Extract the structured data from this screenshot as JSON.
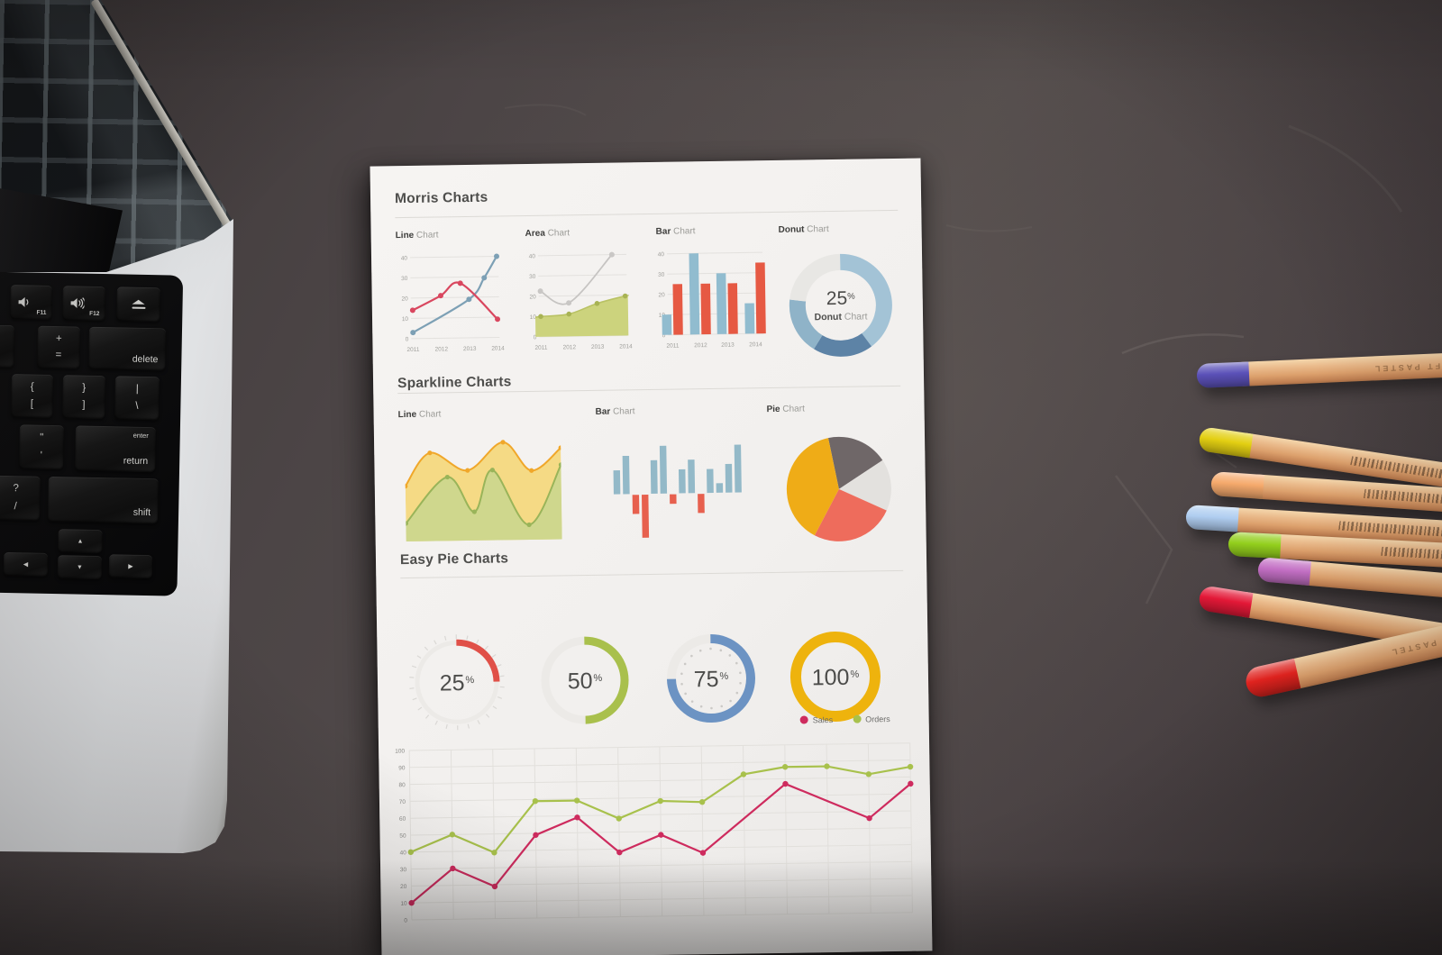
{
  "scene": {
    "description": "Top-down photo of a dark desk: silver laptop keyboard at left, white printed chart report in the center, colored pencils fanned at right",
    "desk_color": "#4b4344",
    "paper_color": "#f2f0ee"
  },
  "laptop": {
    "keys": {
      "f11": {
        "label": "F11",
        "icon": "volume-down-icon"
      },
      "f12": {
        "label": "F12",
        "icon": "volume-up-icon"
      },
      "eject": {
        "icon": "eject-icon"
      },
      "minus": {
        "top": "_",
        "bottom": "-"
      },
      "equals": {
        "top": "+",
        "bottom": "="
      },
      "delete": {
        "label": "delete"
      },
      "lbracket": {
        "top": "{",
        "bottom": "["
      },
      "rbracket": {
        "top": "}",
        "bottom": "]"
      },
      "backslash": {
        "top": "|",
        "bottom": "\\"
      },
      "quote": {
        "top": "\"",
        "bottom": "'"
      },
      "return": {
        "small": "enter",
        "label": "return"
      },
      "question": {
        "top": "?",
        "bottom": "/"
      },
      "shift": {
        "label": "shift"
      },
      "up": {
        "glyph": "▲"
      },
      "down": {
        "glyph": "▼"
      },
      "left": {
        "glyph": "◀"
      },
      "right": {
        "glyph": "▶"
      }
    }
  },
  "paper": {
    "morris": {
      "title": "Morris Charts",
      "panels": [
        {
          "bold": "Line",
          "rest": "Chart"
        },
        {
          "bold": "Area",
          "rest": "Chart"
        },
        {
          "bold": "Bar",
          "rest": "Chart"
        },
        {
          "bold": "Donut",
          "rest": "Chart"
        }
      ]
    },
    "sparkline": {
      "title": "Sparkline Charts",
      "panels": [
        {
          "bold": "Line",
          "rest": "Chart"
        },
        {
          "bold": "Bar",
          "rest": "Chart"
        },
        {
          "bold": "Pie",
          "rest": "Chart"
        }
      ]
    },
    "easy": {
      "title": "Easy Pie Charts"
    },
    "legend": {
      "sales": "Sales",
      "orders": "Orders"
    }
  },
  "chart_data": [
    {
      "id": "morris-line",
      "type": "line",
      "title": "Line Chart",
      "x_ticks": [
        "2011",
        "2012",
        "2013",
        "2014"
      ],
      "ylim": [
        0,
        40
      ],
      "yticks": [
        0,
        10,
        20,
        30,
        40
      ],
      "grid": true,
      "series": [
        {
          "name": "blue",
          "color": "#7da0b5",
          "points": [
            [
              2011,
              3
            ],
            [
              2013,
              19
            ],
            [
              2013.55,
              29.5
            ],
            [
              2014,
              40
            ]
          ]
        },
        {
          "name": "red",
          "color": "#d9475f",
          "points": [
            [
              2011,
              14
            ],
            [
              2012,
              21
            ],
            [
              2012.7,
              27
            ],
            [
              2014,
              9
            ]
          ]
        }
      ]
    },
    {
      "id": "morris-area",
      "type": "area",
      "title": "Area Chart",
      "x_ticks": [
        "2011",
        "2012",
        "2013",
        "2014"
      ],
      "ylim": [
        0,
        40
      ],
      "yticks": [
        0,
        10,
        20,
        30,
        40
      ],
      "grid": true,
      "series": [
        {
          "name": "olive",
          "color": "#b9c264",
          "fill": "#ccd37d",
          "points": [
            [
              2011,
              10
            ],
            [
              2012,
              11
            ],
            [
              2013,
              16
            ],
            [
              2014,
              19.5
            ]
          ]
        },
        {
          "name": "gray",
          "color": "#c6c4c2",
          "points": [
            [
              2011,
              22.5
            ],
            [
              2012,
              16.5
            ],
            [
              2013.55,
              40
            ]
          ]
        }
      ]
    },
    {
      "id": "morris-bar",
      "type": "bar",
      "title": "Bar Chart",
      "categories": [
        "2011",
        "2012",
        "2013",
        "2014"
      ],
      "ylim": [
        0,
        40
      ],
      "yticks": [
        0,
        10,
        20,
        30,
        40
      ],
      "grid": true,
      "series": [
        {
          "name": "blue",
          "color": "#91bccf",
          "values": [
            10,
            40,
            30,
            15
          ]
        },
        {
          "name": "red",
          "color": "#e65943",
          "values": [
            25,
            25,
            25,
            35
          ]
        }
      ]
    },
    {
      "id": "donut",
      "type": "donut",
      "title": "Donut Chart",
      "center_value": "25",
      "center_unit": "%",
      "center_label_bold": "Donut",
      "center_label_rest": "Chart",
      "segments": [
        {
          "name": "light-blue",
          "color": "#a3c3d6",
          "value": 40
        },
        {
          "name": "dark-blue",
          "color": "#5d83a6",
          "value": 19
        },
        {
          "name": "mid-blue",
          "color": "#8fb3c8",
          "value": 18
        },
        {
          "name": "gray",
          "color": "#e8e7e4",
          "value": 23
        }
      ]
    },
    {
      "id": "spark-line",
      "type": "area-sparkline",
      "title": "Line Chart",
      "series": [
        {
          "name": "yellow",
          "stroke": "#f0a72a",
          "fill": "#f4d87e",
          "points": [
            [
              0,
              52
            ],
            [
              16,
              83
            ],
            [
              40,
              66
            ],
            [
              63,
              92
            ],
            [
              81,
              65
            ],
            [
              100,
              86
            ]
          ]
        },
        {
          "name": "green",
          "stroke": "#99b459",
          "fill": "#ccd78d",
          "points": [
            [
              0,
              17
            ],
            [
              27,
              60
            ],
            [
              44,
              27
            ],
            [
              56,
              66
            ],
            [
              79,
              14
            ],
            [
              100,
              70
            ]
          ]
        }
      ]
    },
    {
      "id": "spark-bar",
      "type": "bar-sparkline",
      "title": "Bar Chart",
      "positive_color": "#93b9c8",
      "negative_color": "#e7604e",
      "values": [
        5,
        8,
        -4,
        -9,
        7,
        10,
        -2,
        5,
        7,
        -4,
        5,
        2,
        6,
        10
      ]
    },
    {
      "id": "spark-pie",
      "type": "pie",
      "title": "Pie Chart",
      "start_angle": -11,
      "slices": [
        {
          "name": "dark-gray",
          "color": "#6f6768",
          "value": 19
        },
        {
          "name": "light-gray",
          "color": "#e3e1de",
          "value": 16
        },
        {
          "name": "red",
          "color": "#ee6c5c",
          "value": 26
        },
        {
          "name": "yellow",
          "color": "#efac17",
          "value": 39
        }
      ]
    },
    {
      "id": "easy-pies",
      "type": "progress-rings",
      "title": "Easy Pie Charts",
      "track_color": "#eceae7",
      "items": [
        {
          "value": "25",
          "unit": "%",
          "color": "#e05048",
          "ticks": "outside"
        },
        {
          "value": "50",
          "unit": "%",
          "color": "#a9c04c"
        },
        {
          "value": "75",
          "unit": "%",
          "color": "#6c93c3",
          "dots": "inside"
        },
        {
          "value": "100",
          "unit": "%",
          "color": "#eeb30d"
        }
      ]
    },
    {
      "id": "big-line",
      "type": "line",
      "title": "",
      "ylim": [
        0,
        100
      ],
      "yticks": [
        0,
        10,
        20,
        30,
        40,
        50,
        60,
        70,
        80,
        90,
        100
      ],
      "grid": true,
      "legend": [
        {
          "name": "Sales",
          "color": "#ce2b5e"
        },
        {
          "name": "Orders",
          "color": "#a8c14c"
        }
      ],
      "series": [
        {
          "name": "Sales",
          "color": "#ce2b5e",
          "points": [
            [
              0,
              10
            ],
            [
              1,
              30
            ],
            [
              2,
              19
            ],
            [
              3,
              49
            ],
            [
              4,
              59
            ],
            [
              5,
              38
            ],
            [
              6,
              48
            ],
            [
              7,
              37
            ],
            [
              9,
              77
            ],
            [
              11,
              56
            ],
            [
              12,
              76
            ]
          ]
        },
        {
          "name": "Orders",
          "color": "#a8c14c",
          "points": [
            [
              0,
              40
            ],
            [
              1,
              50
            ],
            [
              2,
              39
            ],
            [
              3,
              69
            ],
            [
              4,
              69
            ],
            [
              5,
              58
            ],
            [
              6,
              68
            ],
            [
              7,
              67
            ],
            [
              8,
              83
            ],
            [
              9,
              87
            ],
            [
              10,
              87
            ],
            [
              11,
              82
            ],
            [
              12,
              86
            ]
          ]
        }
      ]
    }
  ],
  "pencils": [
    {
      "name": "pencil-purple",
      "cap_color": "#5b51b8",
      "text": "SOFT PASTEL"
    },
    {
      "name": "pencil-yellow",
      "cap_color": "#e3cf12",
      "barcode": true
    },
    {
      "name": "pencil-orange",
      "cap_color": "#f5a96c",
      "barcode": true,
      "digits": "95911169"
    },
    {
      "name": "pencil-lightblue",
      "cap_color": "#afcdf0",
      "barcode": true
    },
    {
      "name": "pencil-green",
      "cap_color": "#93cf1d",
      "barcode": true
    },
    {
      "name": "pencil-orchid",
      "cap_color": "#c36fc4"
    },
    {
      "name": "pencil-red",
      "cap_color": "#e31837"
    },
    {
      "name": "pencil-pastel-red",
      "cap_color": "#e5231f",
      "text": "SOFT PASTEL"
    }
  ]
}
